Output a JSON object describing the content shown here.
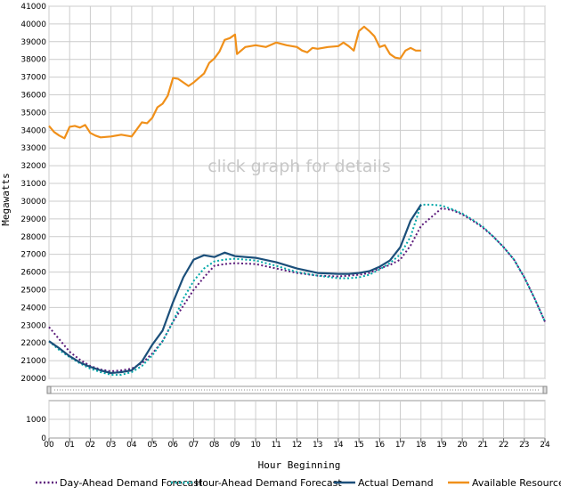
{
  "chart_data": {
    "type": "line",
    "title": "",
    "watermark": "click graph for details",
    "ylabel": "Megawatts",
    "xlabel": "Hour Beginning",
    "ylim": [
      20000,
      41000
    ],
    "xlim": [
      0,
      24
    ],
    "yticks": [
      20000,
      21000,
      22000,
      23000,
      24000,
      25000,
      26000,
      27000,
      28000,
      29000,
      30000,
      31000,
      32000,
      33000,
      34000,
      35000,
      36000,
      37000,
      38000,
      39000,
      40000,
      41000
    ],
    "xticks": [
      "00",
      "01",
      "02",
      "03",
      "04",
      "05",
      "06",
      "07",
      "08",
      "09",
      "10",
      "11",
      "12",
      "13",
      "14",
      "15",
      "16",
      "17",
      "18",
      "19",
      "20",
      "21",
      "22",
      "23",
      "24"
    ],
    "grid": true,
    "legend_position": "bottom",
    "navigator": {
      "yticks": [
        "1000",
        "0"
      ]
    },
    "series": [
      {
        "name": "Day-Ahead Demand Forecast",
        "style": "dotted",
        "color": "#5b1a7a",
        "points": [
          [
            0,
            22900
          ],
          [
            0.5,
            22200
          ],
          [
            1,
            21500
          ],
          [
            1.5,
            21050
          ],
          [
            2,
            20700
          ],
          [
            2.5,
            20500
          ],
          [
            3,
            20400
          ],
          [
            3.5,
            20450
          ],
          [
            4,
            20550
          ],
          [
            4.5,
            20850
          ],
          [
            5,
            21400
          ],
          [
            5.5,
            22100
          ],
          [
            6,
            23200
          ],
          [
            6.5,
            24100
          ],
          [
            7,
            25000
          ],
          [
            7.5,
            25700
          ],
          [
            8,
            26350
          ],
          [
            8.5,
            26450
          ],
          [
            9,
            26500
          ],
          [
            10,
            26450
          ],
          [
            11,
            26200
          ],
          [
            12,
            25950
          ],
          [
            13,
            25800
          ],
          [
            14,
            25750
          ],
          [
            14.5,
            25800
          ],
          [
            15,
            25850
          ],
          [
            15.5,
            25950
          ],
          [
            16,
            26200
          ],
          [
            16.5,
            26400
          ],
          [
            17,
            26700
          ],
          [
            17.5,
            27500
          ],
          [
            18,
            28600
          ],
          [
            18.5,
            29100
          ],
          [
            19,
            29600
          ],
          [
            19.5,
            29500
          ],
          [
            20,
            29250
          ],
          [
            20.5,
            28900
          ],
          [
            21,
            28500
          ],
          [
            21.5,
            28000
          ],
          [
            22,
            27400
          ],
          [
            22.5,
            26700
          ],
          [
            23,
            25700
          ],
          [
            23.5,
            24500
          ],
          [
            24,
            23200
          ]
        ]
      },
      {
        "name": "Hour-Ahead Demand Forecast",
        "style": "dotted",
        "color": "#00a8a8",
        "points": [
          [
            0,
            22100
          ],
          [
            0.5,
            21600
          ],
          [
            1,
            21200
          ],
          [
            1.5,
            20850
          ],
          [
            2,
            20550
          ],
          [
            2.5,
            20350
          ],
          [
            3,
            20200
          ],
          [
            3.5,
            20200
          ],
          [
            4,
            20350
          ],
          [
            4.5,
            20700
          ],
          [
            5,
            21300
          ],
          [
            5.5,
            22100
          ],
          [
            6,
            23200
          ],
          [
            6.5,
            24500
          ],
          [
            7,
            25500
          ],
          [
            7.5,
            26200
          ],
          [
            8,
            26600
          ],
          [
            8.5,
            26700
          ],
          [
            9,
            26750
          ],
          [
            10,
            26650
          ],
          [
            11,
            26350
          ],
          [
            12,
            26000
          ],
          [
            13,
            25800
          ],
          [
            14,
            25650
          ],
          [
            14.5,
            25650
          ],
          [
            15,
            25700
          ],
          [
            15.5,
            25850
          ],
          [
            16,
            26150
          ],
          [
            16.5,
            26500
          ],
          [
            17,
            27000
          ],
          [
            17.5,
            28000
          ],
          [
            18,
            29800
          ],
          [
            18.5,
            29800
          ],
          [
            19,
            29750
          ],
          [
            19.5,
            29550
          ],
          [
            20,
            29300
          ],
          [
            20.5,
            28950
          ],
          [
            21,
            28550
          ],
          [
            21.5,
            28000
          ],
          [
            22,
            27400
          ],
          [
            22.5,
            26700
          ],
          [
            23,
            25700
          ],
          [
            23.5,
            24500
          ],
          [
            24,
            23200
          ]
        ]
      },
      {
        "name": "Actual Demand",
        "style": "solid",
        "color": "#1b4f7a",
        "points": [
          [
            0,
            22100
          ],
          [
            0.5,
            21700
          ],
          [
            1,
            21250
          ],
          [
            1.5,
            20900
          ],
          [
            2,
            20650
          ],
          [
            2.5,
            20450
          ],
          [
            3,
            20300
          ],
          [
            3.5,
            20350
          ],
          [
            4,
            20450
          ],
          [
            4.5,
            20950
          ],
          [
            5,
            21900
          ],
          [
            5.5,
            22700
          ],
          [
            6,
            24300
          ],
          [
            6.5,
            25700
          ],
          [
            7,
            26700
          ],
          [
            7.5,
            26950
          ],
          [
            8,
            26850
          ],
          [
            8.5,
            27100
          ],
          [
            9,
            26900
          ],
          [
            10,
            26800
          ],
          [
            11,
            26550
          ],
          [
            12,
            26200
          ],
          [
            13,
            25950
          ],
          [
            14,
            25900
          ],
          [
            14.5,
            25900
          ],
          [
            15,
            25950
          ],
          [
            15.5,
            26050
          ],
          [
            16,
            26300
          ],
          [
            16.5,
            26650
          ],
          [
            17,
            27400
          ],
          [
            17.5,
            28900
          ],
          [
            18,
            29800
          ]
        ]
      },
      {
        "name": "Available Resources",
        "style": "solid",
        "color": "#f0901a",
        "points": [
          [
            0,
            34250
          ],
          [
            0.25,
            33900
          ],
          [
            0.5,
            33700
          ],
          [
            0.75,
            33550
          ],
          [
            1,
            34200
          ],
          [
            1.25,
            34250
          ],
          [
            1.5,
            34150
          ],
          [
            1.75,
            34300
          ],
          [
            2,
            33850
          ],
          [
            2.25,
            33700
          ],
          [
            2.5,
            33600
          ],
          [
            3,
            33650
          ],
          [
            3.5,
            33750
          ],
          [
            4,
            33650
          ],
          [
            4.5,
            34450
          ],
          [
            4.75,
            34400
          ],
          [
            5,
            34700
          ],
          [
            5.25,
            35300
          ],
          [
            5.5,
            35500
          ],
          [
            5.75,
            35950
          ],
          [
            6,
            36950
          ],
          [
            6.25,
            36900
          ],
          [
            6.5,
            36700
          ],
          [
            6.75,
            36500
          ],
          [
            7,
            36700
          ],
          [
            7.5,
            37200
          ],
          [
            7.75,
            37800
          ],
          [
            8,
            38050
          ],
          [
            8.25,
            38450
          ],
          [
            8.5,
            39100
          ],
          [
            8.75,
            39200
          ],
          [
            9,
            39400
          ],
          [
            9.1,
            38300
          ],
          [
            9.5,
            38700
          ],
          [
            10,
            38800
          ],
          [
            10.5,
            38700
          ],
          [
            11,
            38950
          ],
          [
            11.5,
            38800
          ],
          [
            12,
            38700
          ],
          [
            12.25,
            38500
          ],
          [
            12.5,
            38400
          ],
          [
            12.75,
            38650
          ],
          [
            13,
            38600
          ],
          [
            13.5,
            38700
          ],
          [
            14,
            38750
          ],
          [
            14.25,
            38950
          ],
          [
            14.5,
            38750
          ],
          [
            14.75,
            38500
          ],
          [
            15,
            39600
          ],
          [
            15.25,
            39850
          ],
          [
            15.5,
            39600
          ],
          [
            15.75,
            39300
          ],
          [
            16,
            38700
          ],
          [
            16.25,
            38800
          ],
          [
            16.5,
            38300
          ],
          [
            16.75,
            38100
          ],
          [
            17,
            38050
          ],
          [
            17.25,
            38500
          ],
          [
            17.5,
            38650
          ],
          [
            17.75,
            38500
          ],
          [
            18,
            38500
          ]
        ]
      }
    ]
  }
}
